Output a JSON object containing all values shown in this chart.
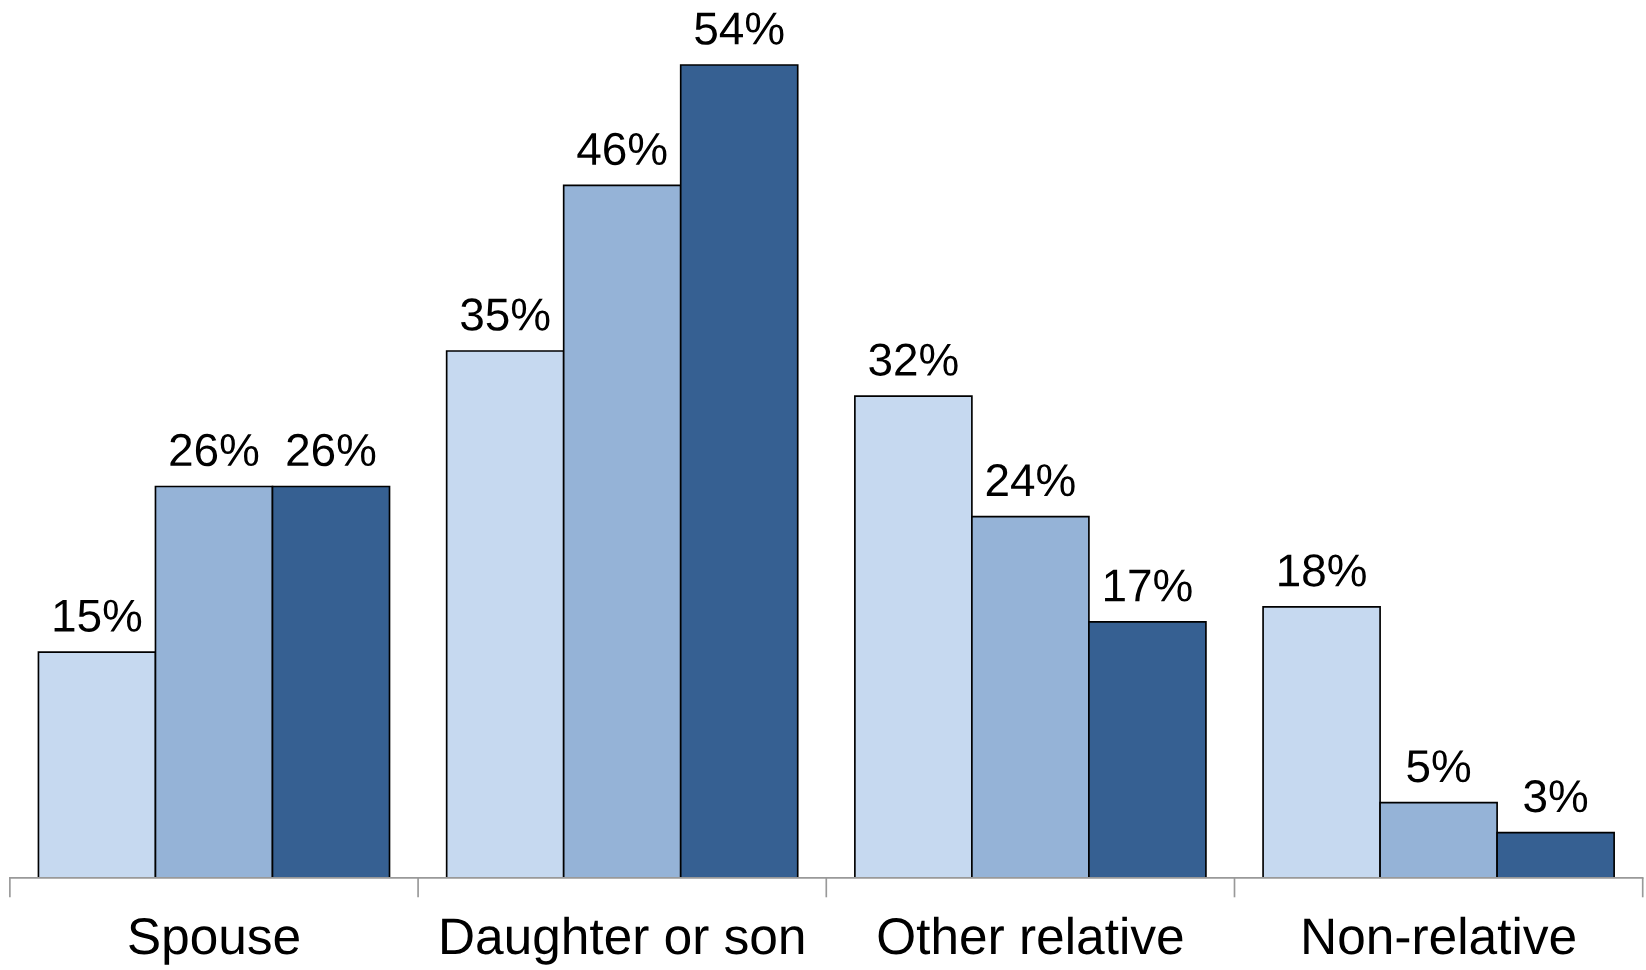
{
  "chart_data": {
    "type": "bar",
    "categories": [
      "Spouse",
      "Daughter or son",
      "Other relative",
      "Non-relative"
    ],
    "series": [
      {
        "color": "#c6d9f0",
        "values": [
          15,
          35,
          32,
          18
        ],
        "value_labels": [
          "15%",
          "35%",
          "32%",
          "18%"
        ]
      },
      {
        "color": "#95b3d7",
        "values": [
          26,
          46,
          24,
          5
        ],
        "value_labels": [
          "26%",
          "46%",
          "24%",
          "5%"
        ]
      },
      {
        "color": "#366092",
        "values": [
          26,
          54,
          17,
          3
        ],
        "value_labels": [
          "26%",
          "54%",
          "17%",
          "3%"
        ]
      }
    ],
    "grid": false,
    "legend": false
  }
}
